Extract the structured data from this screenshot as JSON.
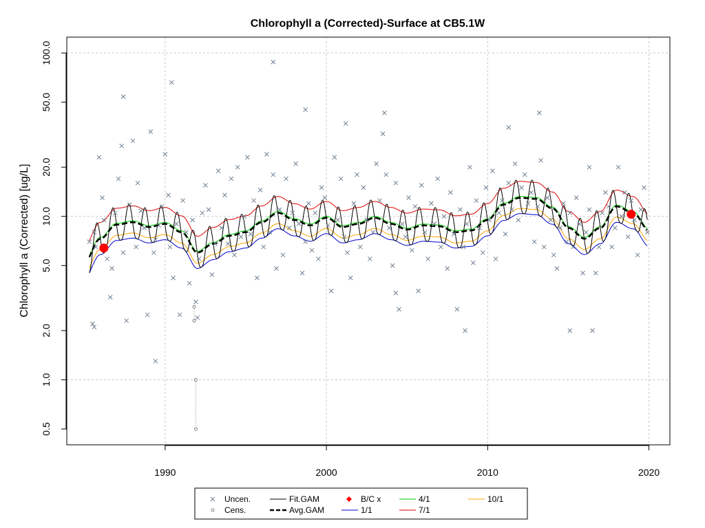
{
  "chart_data": {
    "type": "scatter",
    "title": "Chlorophyll a (Corrected)-Surface at CB5.1W",
    "xlabel": "",
    "ylabel": "Chlorophyll a (Corrected) [ug/L]",
    "y_scale": "log",
    "xlim": [
      1983.9,
      2021.3
    ],
    "ylim": [
      0.4,
      125
    ],
    "x_ticks": [
      1990,
      2000,
      2010,
      2020
    ],
    "y_ticks": [
      0.5,
      1.0,
      2.0,
      5.0,
      10.0,
      20.0,
      50.0,
      100.0
    ],
    "x_tick_labels": [
      "1990",
      "2000",
      "2010",
      "2020"
    ],
    "y_tick_labels": [
      "0.5",
      "1.0",
      "2.0",
      "5.0",
      "10.0",
      "20.0",
      "50.0",
      "100.0"
    ],
    "grid": true,
    "legend_position": "bottom-center",
    "legend": [
      {
        "label": "Uncen.",
        "symbol": "x",
        "color": "#708090"
      },
      {
        "label": "Cens.",
        "symbol": "circle",
        "color": "#808080"
      },
      {
        "label": "Fit.GAM",
        "symbol": "line",
        "color": "#000000"
      },
      {
        "label": "Avg.GAM",
        "symbol": "dashed-line",
        "color": "#000000"
      },
      {
        "label": "B/C x",
        "symbol": "diamond",
        "color": "#ff0000"
      },
      {
        "label": "1/1",
        "symbol": "line",
        "color": "#0000cd"
      },
      {
        "label": "4/1",
        "symbol": "line",
        "color": "#00cc00"
      },
      {
        "label": "7/1",
        "symbol": "line",
        "color": "#dd0000"
      },
      {
        "label": "10/1",
        "symbol": "line",
        "color": "#ffa500"
      }
    ],
    "series": [
      {
        "name": "Uncen.",
        "x": [
          1985.3,
          1985.5,
          1985.6,
          1985.7,
          1985.9,
          1986.1,
          1986.2,
          1986.4,
          1986.6,
          1986.7,
          1986.9,
          1987.1,
          1987.3,
          1987.4,
          1987.6,
          1987.8,
          1988.0,
          1988.2,
          1988.3,
          1988.5,
          1988.7,
          1988.9,
          1989.1,
          1989.3,
          1989.4,
          1989.6,
          1989.8,
          1990.0,
          1990.2,
          1990.3,
          1990.5,
          1990.7,
          1990.9,
          1991.1,
          1991.3,
          1991.5,
          1991.7,
          1991.9,
          1992.1,
          1992.3,
          1992.5,
          1992.7,
          1992.9,
          1993.1,
          1993.3,
          1993.5,
          1993.7,
          1993.9,
          1994.1,
          1994.3,
          1994.5,
          1994.7,
          1994.9,
          1995.1,
          1995.3,
          1995.5,
          1995.7,
          1995.9,
          1996.1,
          1996.3,
          1996.5,
          1996.7,
          1996.9,
          1997.1,
          1997.3,
          1997.5,
          1997.7,
          1997.9,
          1998.1,
          1998.3,
          1998.5,
          1998.7,
          1998.9,
          1999.1,
          1999.3,
          1999.5,
          1999.7,
          1999.9,
          2000.1,
          2000.3,
          2000.5,
          2000.7,
          2000.9,
          2001.1,
          2001.3,
          2001.5,
          2001.7,
          2001.9,
          2002.1,
          2002.3,
          2002.5,
          2002.7,
          2002.9,
          2003.1,
          2003.3,
          2003.5,
          2003.7,
          2003.9,
          2004.1,
          2004.3,
          2004.5,
          2004.7,
          2004.9,
          2005.1,
          2005.3,
          2005.5,
          2005.7,
          2005.9,
          2006.1,
          2006.3,
          2006.5,
          2006.7,
          2006.9,
          2007.1,
          2007.3,
          2007.5,
          2007.7,
          2007.9,
          2008.1,
          2008.3,
          2008.5,
          2008.7,
          2008.9,
          2009.1,
          2009.3,
          2009.5,
          2009.7,
          2009.9,
          2010.1,
          2010.3,
          2010.5,
          2010.7,
          2010.9,
          2011.1,
          2011.3,
          2011.5,
          2011.7,
          2011.9,
          2012.1,
          2012.3,
          2012.5,
          2012.7,
          2012.9,
          2013.1,
          2013.3,
          2013.5,
          2013.7,
          2013.9,
          2014.1,
          2014.3,
          2014.5,
          2014.7,
          2014.9,
          2015.1,
          2015.3,
          2015.5,
          2015.7,
          2015.9,
          2016.1,
          2016.3,
          2016.5,
          2016.7,
          2016.9,
          2017.1,
          2017.3,
          2017.5,
          2017.7,
          2017.9,
          2018.1,
          2018.3,
          2018.5,
          2018.7,
          2018.9,
          2019.1,
          2019.3,
          2019.5,
          2019.7,
          2019.9,
          1987.4,
          1990.4,
          1996.7,
          1998.7,
          2001.2,
          2003.6,
          2011.3,
          2013.2,
          2015.1,
          2016.3,
          1989.4,
          1992.0,
          1985.6,
          2004.3,
          2008.6
        ],
        "y": [
          7.0,
          2.2,
          8.0,
          6.5,
          23,
          13,
          9.5,
          5.5,
          3.2,
          4.8,
          10.5,
          17,
          27,
          6.0,
          2.3,
          11.8,
          29,
          6.5,
          16,
          10.8,
          8.5,
          2.5,
          33,
          6.0,
          7.2,
          8.8,
          11.5,
          24,
          13.5,
          6.5,
          4.2,
          9.0,
          2.5,
          12.5,
          8.0,
          3.9,
          9.5,
          3.0,
          5.5,
          10.5,
          15.5,
          11.0,
          4.4,
          6.8,
          19,
          8.5,
          13.5,
          6.8,
          17,
          5.8,
          20,
          7.5,
          10.0,
          23,
          7.8,
          12.5,
          4.2,
          14.5,
          6.5,
          24,
          8.0,
          18,
          4.8,
          11,
          5.8,
          17,
          8.5,
          10.5,
          21,
          9.0,
          4.5,
          7.0,
          12,
          6.2,
          10.5,
          5.5,
          15,
          13,
          8.8,
          3.5,
          23,
          9.5,
          17,
          7.5,
          6.0,
          4.2,
          12,
          18,
          6.5,
          15,
          9.5,
          5.5,
          8.0,
          21,
          12.5,
          32,
          18,
          8.5,
          5.0,
          16,
          2.7,
          9.0,
          7.5,
          13,
          6.2,
          11.5,
          3.5,
          15.5,
          8.0,
          5.5,
          12,
          9.0,
          17,
          6.5,
          10,
          4.8,
          14,
          7.8,
          2.7,
          11,
          6.5,
          9,
          20,
          5.2,
          12.5,
          8.5,
          6.0,
          15,
          9.5,
          19,
          5.5,
          10.5,
          12.5,
          7.8,
          16,
          11,
          21,
          9.5,
          15,
          18,
          12,
          14,
          7.0,
          11.5,
          22,
          6.5,
          13,
          9.5,
          5.8,
          4.8,
          8.5,
          12,
          7.0,
          10.5,
          6.5,
          13,
          9.0,
          4.5,
          8.0,
          11,
          2.0,
          4.5,
          6.5,
          10.5,
          14,
          11.5,
          6.5,
          8.5,
          20,
          10,
          14,
          7.5,
          12.5,
          9.5,
          5.8,
          11,
          15,
          8.0,
          54,
          66,
          88,
          45,
          37,
          43,
          35,
          43,
          2.0,
          20,
          1.3,
          2.4,
          2.1,
          3.4,
          2.0
        ]
      },
      {
        "name": "Cens.",
        "x": [
          1991.8,
          1991.8,
          1991.9,
          1991.9
        ],
        "y": [
          2.8,
          2.3,
          1.0,
          0.5
        ]
      },
      {
        "name": "B/C x",
        "x": [
          1986.2,
          2018.9
        ],
        "y": [
          6.4,
          10.3
        ]
      }
    ],
    "trend": {
      "name": "Avg.GAM",
      "x": [
        1985.0,
        1986.0,
        1987.0,
        1988.0,
        1989.0,
        1990.0,
        1991.0,
        1992.0,
        1993.0,
        1994.0,
        1995.0,
        1996.0,
        1997.0,
        1998.0,
        1999.0,
        2000.0,
        2001.0,
        2002.0,
        2003.0,
        2004.0,
        2005.0,
        2006.0,
        2007.0,
        2008.0,
        2009.0,
        2010.0,
        2011.0,
        2012.0,
        2013.0,
        2014.0,
        2015.0,
        2016.0,
        2017.0,
        2018.0,
        2019.0,
        2020.0
      ],
      "y": [
        5.2,
        7.3,
        8.9,
        9.2,
        8.6,
        9.0,
        8.0,
        6.0,
        6.8,
        7.6,
        8.0,
        9.2,
        10.5,
        9.5,
        8.8,
        9.8,
        8.6,
        9.0,
        9.8,
        9.0,
        8.3,
        8.8,
        8.7,
        8.0,
        8.2,
        9.5,
        11.8,
        13.0,
        12.8,
        11.2,
        8.5,
        7.3,
        8.5,
        11.5,
        10.5,
        8.2
      ]
    },
    "seasonal_amplitude": 1.3,
    "seasonal_lines": [
      {
        "name": "1/1",
        "offset": 0.8
      },
      {
        "name": "4/1",
        "offset": 1.02
      },
      {
        "name": "7/1",
        "offset": 1.26
      },
      {
        "name": "10/1",
        "offset": 0.86
      }
    ]
  }
}
